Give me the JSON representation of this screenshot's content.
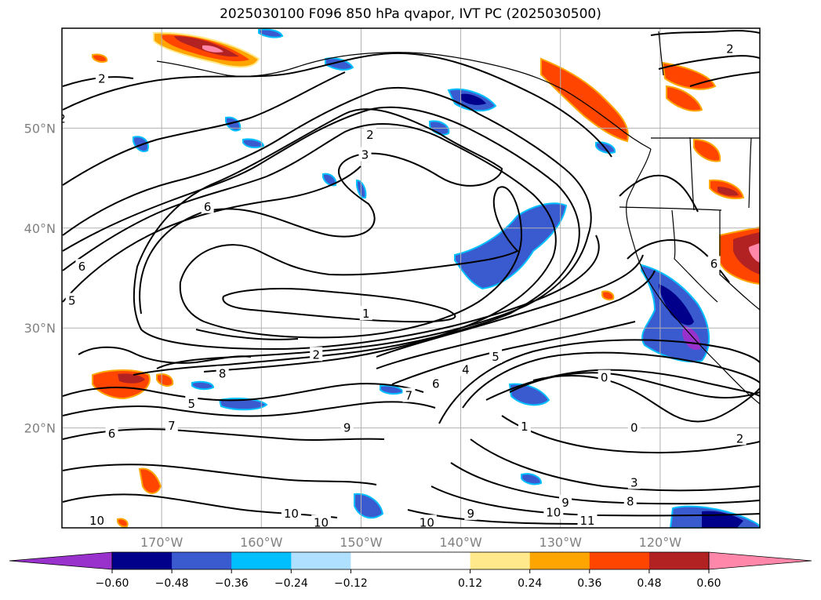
{
  "chart_data": {
    "type": "contour-map",
    "title": "2025030100 F096 850 hPa qvapor, IVT PC (2025030500)",
    "xlabel": "",
    "ylabel": "",
    "x_ticks": [
      "170°W",
      "160°W",
      "150°W",
      "140°W",
      "130°W",
      "120°W"
    ],
    "x_tick_values": [
      -170,
      -160,
      -150,
      -140,
      -130,
      -120
    ],
    "y_ticks": [
      "20°N",
      "30°N",
      "40°N",
      "50°N"
    ],
    "y_tick_values": [
      20,
      30,
      40,
      50
    ],
    "xlim": [
      -180,
      -110
    ],
    "ylim": [
      10,
      60
    ],
    "grid": true,
    "colorbar": {
      "orientation": "horizontal",
      "extend": "both",
      "tick_labels": [
        "−0.60",
        "−0.48",
        "−0.36",
        "−0.24",
        "−0.12",
        "0.12",
        "0.24",
        "0.36",
        "0.48",
        "0.60"
      ],
      "levels": [
        -0.6,
        -0.48,
        -0.36,
        -0.24,
        -0.12,
        0.12,
        0.24,
        0.36,
        0.48,
        0.6
      ],
      "colors": [
        "#9932cc",
        "#00008b",
        "#3a5bd0",
        "#00bfff",
        "#b0e0ff",
        "#ffffff",
        "#ffe98a",
        "#ffa500",
        "#ff4500",
        "#b22222",
        "#ff88aa"
      ]
    },
    "contour_labels": [
      {
        "text": "1",
        "lon": -149.5,
        "lat": 31.5
      },
      {
        "text": "2",
        "lon": -154.5,
        "lat": 27.4
      },
      {
        "text": "2",
        "lon": -149.1,
        "lat": 49.4
      },
      {
        "text": "2",
        "lon": -176,
        "lat": 55
      },
      {
        "text": "2",
        "lon": -180,
        "lat": 51
      },
      {
        "text": "2",
        "lon": -113,
        "lat": 58
      },
      {
        "text": "2",
        "lon": -112,
        "lat": 19
      },
      {
        "text": "3",
        "lon": -149.6,
        "lat": 47.4
      },
      {
        "text": "6",
        "lon": -165.4,
        "lat": 42.2
      },
      {
        "text": "6",
        "lon": -178,
        "lat": 36.2
      },
      {
        "text": "5",
        "lon": -179,
        "lat": 32.8
      },
      {
        "text": "8",
        "lon": -163.9,
        "lat": 25.5
      },
      {
        "text": "5",
        "lon": -167,
        "lat": 22.5
      },
      {
        "text": "7",
        "lon": -169,
        "lat": 20.3
      },
      {
        "text": "6",
        "lon": -175,
        "lat": 19.5
      },
      {
        "text": "7",
        "lon": -145.2,
        "lat": 23.3
      },
      {
        "text": "6",
        "lon": -142.5,
        "lat": 24.5
      },
      {
        "text": "4",
        "lon": -139.5,
        "lat": 25.9
      },
      {
        "text": "5",
        "lon": -136.5,
        "lat": 27.2
      },
      {
        "text": "0",
        "lon": -125.6,
        "lat": 25.1
      },
      {
        "text": "0",
        "lon": -122.6,
        "lat": 20.1
      },
      {
        "text": "1",
        "lon": -133.6,
        "lat": 20.2
      },
      {
        "text": "3",
        "lon": -122.6,
        "lat": 14.6
      },
      {
        "text": "8",
        "lon": -123,
        "lat": 12.7
      },
      {
        "text": "9",
        "lon": -129.5,
        "lat": 12.6
      },
      {
        "text": "10",
        "lon": -130.7,
        "lat": 11.6
      },
      {
        "text": "11",
        "lon": -127.3,
        "lat": 10.8
      },
      {
        "text": "9",
        "lon": -139,
        "lat": 11.5
      },
      {
        "text": "10",
        "lon": -143.4,
        "lat": 10.6
      },
      {
        "text": "10",
        "lon": -157,
        "lat": 11.5
      },
      {
        "text": "10",
        "lon": -154,
        "lat": 10.6
      },
      {
        "text": "10",
        "lon": -176.5,
        "lat": 10.8
      },
      {
        "text": "9",
        "lon": -151.4,
        "lat": 20.1
      },
      {
        "text": "6",
        "lon": -114.6,
        "lat": 36.5
      }
    ]
  }
}
